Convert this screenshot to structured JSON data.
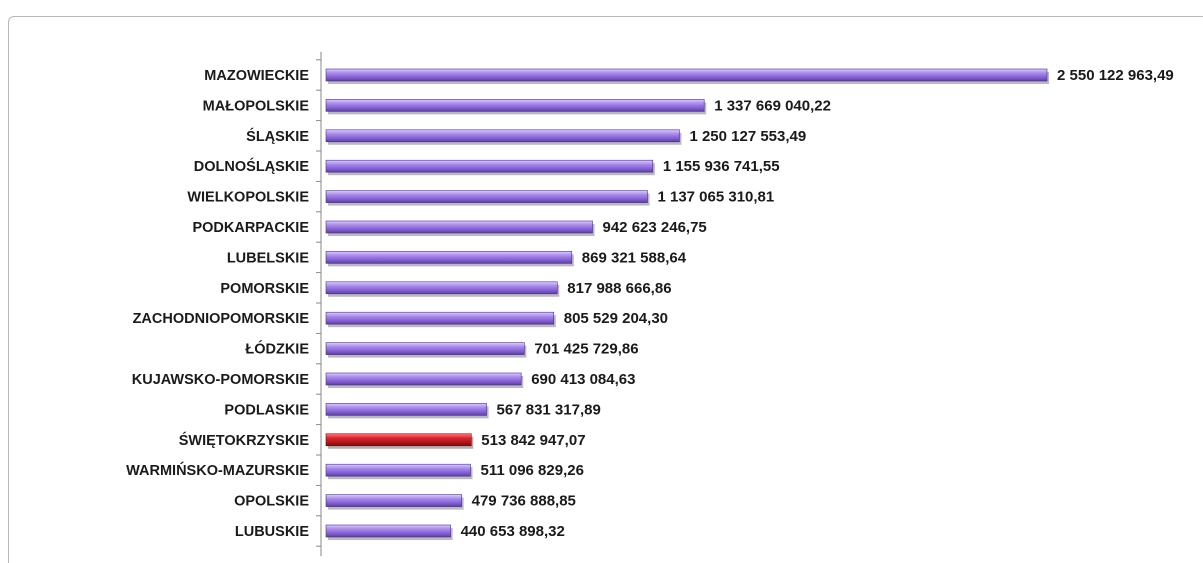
{
  "chart_data": {
    "type": "bar",
    "orientation": "horizontal",
    "categories": [
      "MAZOWIECKIE",
      "MAŁOPOLSKIE",
      "ŚLĄSKIE",
      "DOLNOŚLĄSKIE",
      "WIELKOPOLSKIE",
      "PODKARPACKIE",
      "LUBELSKIE",
      "POMORSKIE",
      "ZACHODNIOPOMORSKIE",
      "ŁÓDZKIE",
      "KUJAWSKO-POMORSKIE",
      "PODLASKIE",
      "ŚWIĘTOKRZYSKIE",
      "WARMIŃSKO-MAZURSKIE",
      "OPOLSKIE",
      "LUBUSKIE"
    ],
    "values": [
      2550122963.49,
      1337669040.22,
      1250127553.49,
      1155936741.55,
      1137065310.81,
      942623246.75,
      869321588.64,
      817988666.86,
      805529204.3,
      701425729.86,
      690413084.63,
      567831317.89,
      513842947.07,
      511096829.26,
      479736888.85,
      440653898.32
    ],
    "value_labels": [
      "2 550 122 963,49",
      "1 337 669 040,22",
      "1 250 127 553,49",
      "1 155 936 741,55",
      "1 137 065 310,81",
      "942 623 246,75",
      "869 321 588,64",
      "817 988 666,86",
      "805 529 204,30",
      "701 425 729,86",
      "690 413 084,63",
      "567 831 317,89",
      "513 842 947,07",
      "511 096 829,26",
      "479 736 888,85",
      "440 653 898,32"
    ],
    "highlight_category": "ŚWIĘTOKRZYSKIE",
    "colors": {
      "bar": "#8c6bd6",
      "highlight": "#c0141a"
    },
    "xlim": [
      0,
      2550122963.49
    ],
    "title": "",
    "xlabel": "",
    "ylabel": "",
    "grid": false,
    "legend": "none"
  }
}
